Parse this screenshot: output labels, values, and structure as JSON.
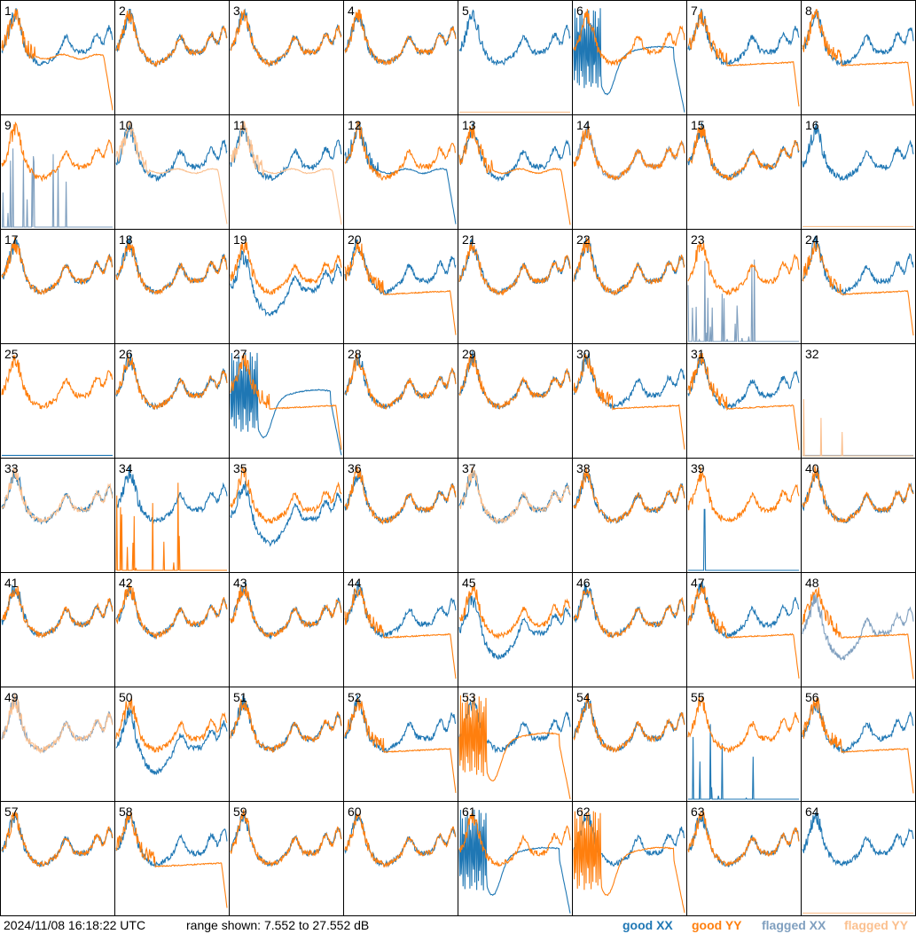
{
  "timestamp": "2024/11/08 16:18:22 UTC",
  "range_text": "range shown: 7.552 to 27.552 dB",
  "legend": {
    "good_xx": "good XX",
    "good_yy": "good YY",
    "flagged_xx": "flagged XX",
    "flagged_yy": "flagged YY"
  },
  "colors": {
    "good_xx": "#1f77b4",
    "good_yy": "#ff7f0e",
    "flagged_xx": "#7f9fbf",
    "flagged_yy": "#fbc08f"
  },
  "chart_data": {
    "type": "line",
    "title": "",
    "ylim_db": [
      7.552,
      27.552
    ],
    "grid": "8x8 small multiples, one panel per antenna input",
    "panels": [
      {
        "id": "1",
        "xx": "good",
        "yy": "good",
        "xx_shape": "normal",
        "yy_shape": "rolloff"
      },
      {
        "id": "2",
        "xx": "good",
        "yy": "good",
        "xx_shape": "normal",
        "yy_shape": "normal"
      },
      {
        "id": "3",
        "xx": "good",
        "yy": "good",
        "xx_shape": "normal",
        "yy_shape": "normal"
      },
      {
        "id": "4",
        "xx": "good",
        "yy": "good",
        "xx_shape": "normal",
        "yy_shape": "normal"
      },
      {
        "id": "5",
        "xx": "good",
        "yy": "flagged",
        "xx_shape": "normal",
        "yy_shape": "dead"
      },
      {
        "id": "6",
        "xx": "good",
        "yy": "good",
        "xx_shape": "oscillating",
        "yy_shape": "normal"
      },
      {
        "id": "7",
        "xx": "good",
        "yy": "good",
        "xx_shape": "normal",
        "yy_shape": "plateau"
      },
      {
        "id": "8",
        "xx": "good",
        "yy": "good",
        "xx_shape": "normal",
        "yy_shape": "plateau"
      },
      {
        "id": "9",
        "xx": "flagged",
        "yy": "good",
        "xx_shape": "spiky",
        "yy_shape": "normal"
      },
      {
        "id": "10",
        "xx": "good",
        "yy": "flagged",
        "xx_shape": "normal",
        "yy_shape": "rolloff"
      },
      {
        "id": "11",
        "xx": "good",
        "yy": "flagged",
        "xx_shape": "normal",
        "yy_shape": "rolloff"
      },
      {
        "id": "12",
        "xx": "good",
        "yy": "good",
        "xx_shape": "rolloff",
        "yy_shape": "normal"
      },
      {
        "id": "13",
        "xx": "good",
        "yy": "good",
        "xx_shape": "normal",
        "yy_shape": "rolloff"
      },
      {
        "id": "14",
        "xx": "flagged",
        "yy": "good",
        "xx_shape": "normal",
        "yy_shape": "normal"
      },
      {
        "id": "15",
        "xx": "good",
        "yy": "good",
        "xx_shape": "normal",
        "yy_shape": "normal"
      },
      {
        "id": "16",
        "xx": "good",
        "yy": "flagged",
        "xx_shape": "normal",
        "yy_shape": "dead"
      },
      {
        "id": "17",
        "xx": "good",
        "yy": "good",
        "xx_shape": "normal",
        "yy_shape": "normal"
      },
      {
        "id": "18",
        "xx": "good",
        "yy": "good",
        "xx_shape": "normal",
        "yy_shape": "normal"
      },
      {
        "id": "19",
        "xx": "good",
        "yy": "good",
        "xx_shape": "low",
        "yy_shape": "normal"
      },
      {
        "id": "20",
        "xx": "good",
        "yy": "good",
        "xx_shape": "normal",
        "yy_shape": "plateau"
      },
      {
        "id": "21",
        "xx": "good",
        "yy": "good",
        "xx_shape": "normal",
        "yy_shape": "normal"
      },
      {
        "id": "22",
        "xx": "good",
        "yy": "good",
        "xx_shape": "normal",
        "yy_shape": "normal"
      },
      {
        "id": "23",
        "xx": "flagged",
        "yy": "good",
        "xx_shape": "spiky",
        "yy_shape": "normal"
      },
      {
        "id": "24",
        "xx": "good",
        "yy": "good",
        "xx_shape": "normal",
        "yy_shape": "plateau"
      },
      {
        "id": "25",
        "xx": "good",
        "yy": "good",
        "xx_shape": "dead",
        "yy_shape": "normal"
      },
      {
        "id": "26",
        "xx": "good",
        "yy": "good",
        "xx_shape": "normal",
        "yy_shape": "normal"
      },
      {
        "id": "27",
        "xx": "good",
        "yy": "good",
        "xx_shape": "oscillating",
        "yy_shape": "plateau"
      },
      {
        "id": "28",
        "xx": "good",
        "yy": "good",
        "xx_shape": "normal",
        "yy_shape": "normal"
      },
      {
        "id": "29",
        "xx": "good",
        "yy": "good",
        "xx_shape": "normal",
        "yy_shape": "normal"
      },
      {
        "id": "30",
        "xx": "good",
        "yy": "good",
        "xx_shape": "normal",
        "yy_shape": "plateau"
      },
      {
        "id": "31",
        "xx": "good",
        "yy": "good",
        "xx_shape": "normal",
        "yy_shape": "plateau"
      },
      {
        "id": "32",
        "xx": "flagged",
        "yy": "flagged",
        "xx_shape": "dead",
        "yy_shape": "spiky"
      },
      {
        "id": "33",
        "xx": "good",
        "yy": "flagged",
        "xx_shape": "normal",
        "yy_shape": "normal"
      },
      {
        "id": "34",
        "xx": "good",
        "yy": "good",
        "xx_shape": "normal",
        "yy_shape": "spiky"
      },
      {
        "id": "35",
        "xx": "good",
        "yy": "good",
        "xx_shape": "low",
        "yy_shape": "normal"
      },
      {
        "id": "36",
        "xx": "good",
        "yy": "good",
        "xx_shape": "normal",
        "yy_shape": "normal"
      },
      {
        "id": "37",
        "xx": "good",
        "yy": "flagged",
        "xx_shape": "normal",
        "yy_shape": "normal"
      },
      {
        "id": "38",
        "xx": "good",
        "yy": "good",
        "xx_shape": "normal",
        "yy_shape": "normal"
      },
      {
        "id": "39",
        "xx": "good",
        "yy": "good",
        "xx_shape": "spike",
        "yy_shape": "normal"
      },
      {
        "id": "40",
        "xx": "good",
        "yy": "good",
        "xx_shape": "normal",
        "yy_shape": "normal"
      },
      {
        "id": "41",
        "xx": "good",
        "yy": "good",
        "xx_shape": "normal",
        "yy_shape": "normal"
      },
      {
        "id": "42",
        "xx": "good",
        "yy": "good",
        "xx_shape": "normal",
        "yy_shape": "normal"
      },
      {
        "id": "43",
        "xx": "good",
        "yy": "good",
        "xx_shape": "normal",
        "yy_shape": "normal"
      },
      {
        "id": "44",
        "xx": "good",
        "yy": "good",
        "xx_shape": "normal",
        "yy_shape": "plateau"
      },
      {
        "id": "45",
        "xx": "good",
        "yy": "good",
        "xx_shape": "low",
        "yy_shape": "normal"
      },
      {
        "id": "46",
        "xx": "good",
        "yy": "good",
        "xx_shape": "normal",
        "yy_shape": "normal"
      },
      {
        "id": "47",
        "xx": "good",
        "yy": "good",
        "xx_shape": "normal",
        "yy_shape": "plateau"
      },
      {
        "id": "48",
        "xx": "flagged",
        "yy": "good",
        "xx_shape": "low",
        "yy_shape": "plateau"
      },
      {
        "id": "49",
        "xx": "flagged",
        "yy": "flagged",
        "xx_shape": "normal",
        "yy_shape": "normal"
      },
      {
        "id": "50",
        "xx": "good",
        "yy": "good",
        "xx_shape": "low",
        "yy_shape": "normal"
      },
      {
        "id": "51",
        "xx": "good",
        "yy": "good",
        "xx_shape": "normal",
        "yy_shape": "normal"
      },
      {
        "id": "52",
        "xx": "good",
        "yy": "good",
        "xx_shape": "normal",
        "yy_shape": "plateau"
      },
      {
        "id": "53",
        "xx": "good",
        "yy": "good",
        "xx_shape": "normal",
        "yy_shape": "oscillating"
      },
      {
        "id": "54",
        "xx": "good",
        "yy": "good",
        "xx_shape": "normal",
        "yy_shape": "normal"
      },
      {
        "id": "55",
        "xx": "good",
        "yy": "good",
        "xx_shape": "spiky",
        "yy_shape": "normal"
      },
      {
        "id": "56",
        "xx": "good",
        "yy": "good",
        "xx_shape": "normal",
        "yy_shape": "plateau"
      },
      {
        "id": "57",
        "xx": "good",
        "yy": "good",
        "xx_shape": "normal",
        "yy_shape": "normal"
      },
      {
        "id": "58",
        "xx": "good",
        "yy": "good",
        "xx_shape": "normal",
        "yy_shape": "plateau"
      },
      {
        "id": "59",
        "xx": "good",
        "yy": "good",
        "xx_shape": "normal",
        "yy_shape": "normal"
      },
      {
        "id": "60",
        "xx": "good",
        "yy": "good",
        "xx_shape": "normal",
        "yy_shape": "normal"
      },
      {
        "id": "61",
        "xx": "good",
        "yy": "good",
        "xx_shape": "oscillating",
        "yy_shape": "normal"
      },
      {
        "id": "62",
        "xx": "good",
        "yy": "good",
        "xx_shape": "normal",
        "yy_shape": "oscillating"
      },
      {
        "id": "63",
        "xx": "good",
        "yy": "good",
        "xx_shape": "normal",
        "yy_shape": "normal"
      },
      {
        "id": "64",
        "xx": "good",
        "yy": "flagged",
        "xx_shape": "normal",
        "yy_shape": "dead"
      }
    ]
  }
}
